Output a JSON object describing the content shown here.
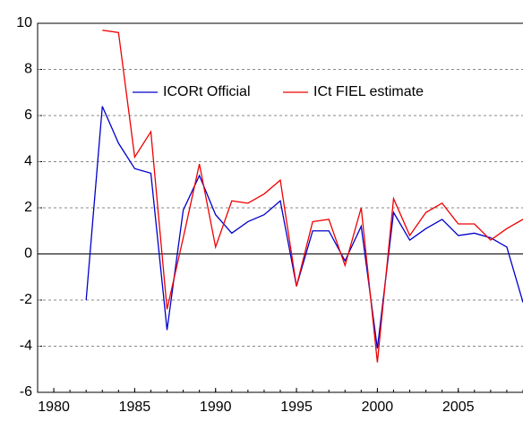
{
  "chart_data": {
    "type": "line",
    "x": [
      1982,
      1983,
      1984,
      1985,
      1986,
      1987,
      1988,
      1989,
      1990,
      1991,
      1992,
      1993,
      1994,
      1995,
      1996,
      1997,
      1998,
      1999,
      2000,
      2001,
      2002,
      2003,
      2004,
      2005,
      2006,
      2007,
      2008,
      2009
    ],
    "series": [
      {
        "name": "ICORt Official",
        "color": "#0000cc",
        "values": [
          -2.0,
          6.4,
          4.8,
          3.7,
          3.5,
          -3.3,
          1.9,
          3.4,
          1.7,
          0.9,
          1.4,
          1.7,
          2.3,
          -1.4,
          1.0,
          1.0,
          -0.3,
          1.2,
          -4.1,
          1.8,
          0.6,
          1.1,
          1.5,
          0.8,
          0.9,
          0.7,
          0.3,
          -2.1
        ]
      },
      {
        "name": "ICt FIEL estimate",
        "color": "#ee0000",
        "values": [
          null,
          9.7,
          9.6,
          4.2,
          5.3,
          -2.4,
          0.7,
          3.9,
          0.3,
          2.3,
          2.2,
          2.6,
          3.2,
          -1.4,
          1.4,
          1.5,
          -0.5,
          2.0,
          -4.7,
          2.4,
          0.8,
          1.8,
          2.2,
          1.3,
          1.3,
          0.6,
          1.1,
          1.5
        ]
      }
    ],
    "xlim": [
      1979,
      2009
    ],
    "xticks": [
      1980,
      1985,
      1990,
      1995,
      2000,
      2005
    ],
    "ylim": [
      -6,
      10
    ],
    "yticks": [
      -6,
      -4,
      -2,
      0,
      2,
      4,
      6,
      8,
      10
    ],
    "grid": true,
    "legend": "top"
  }
}
